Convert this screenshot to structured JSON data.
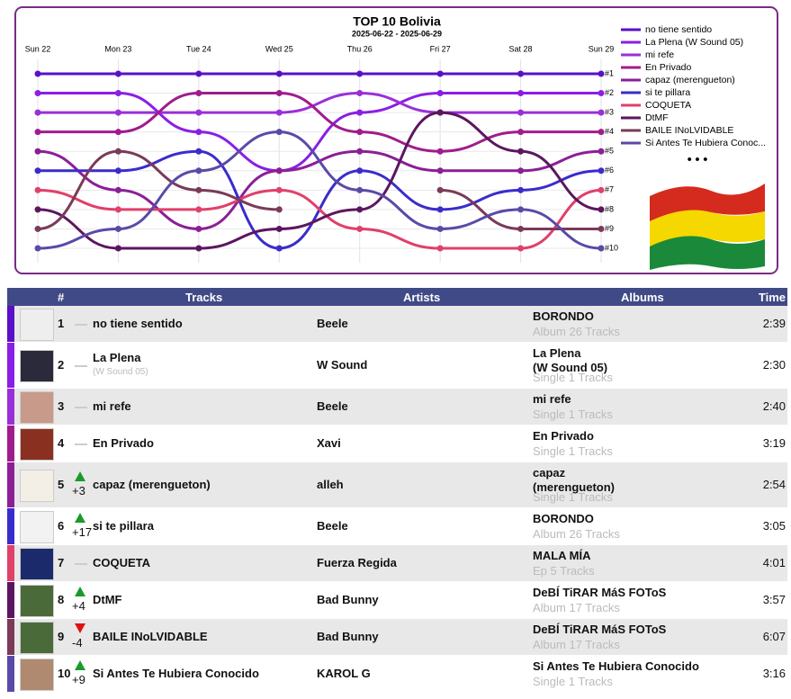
{
  "chart_data": {
    "type": "bump",
    "title": "TOP 10 Bolivia",
    "subtitle": "2025-06-22 - 2025-06-29",
    "categories": [
      "Sun 22",
      "Mon 23",
      "Tue 24",
      "Wed 25",
      "Thu 26",
      "Fri 27",
      "Sat 28",
      "Sun 29"
    ],
    "ylim": [
      10,
      1
    ],
    "yticks": [
      {
        "value": 1,
        "label": "#1"
      },
      {
        "value": 2,
        "label": "#2"
      },
      {
        "value": 3,
        "label": "#3"
      },
      {
        "value": 4,
        "label": "#4"
      },
      {
        "value": 5,
        "label": "#5"
      },
      {
        "value": 6,
        "label": "#6"
      },
      {
        "value": 7,
        "label": "#7"
      },
      {
        "value": 8,
        "label": "#8"
      },
      {
        "value": 9,
        "label": "#9"
      },
      {
        "value": 10,
        "label": "#10"
      }
    ],
    "grid": true,
    "legend": "right",
    "series": [
      {
        "name": "no tiene sentido",
        "color": "#5a10c8",
        "values": [
          1,
          1,
          1,
          1,
          1,
          1,
          1,
          1
        ]
      },
      {
        "name": "La Plena (W Sound 05)",
        "color": "#8a1ee6",
        "values": [
          2,
          2,
          4,
          6,
          3,
          2,
          2,
          2
        ]
      },
      {
        "name": "mi refe",
        "color": "#9a2fd8",
        "values": [
          3,
          3,
          3,
          3,
          2,
          3,
          3,
          3
        ]
      },
      {
        "name": "En Privado",
        "color": "#a01c8c",
        "values": [
          4,
          4,
          2,
          2,
          4,
          5,
          4,
          4
        ]
      },
      {
        "name": "capaz (merengueton)",
        "color": "#8c1e96",
        "values": [
          5,
          7,
          9,
          6,
          5,
          6,
          6,
          5
        ]
      },
      {
        "name": "si te pillara",
        "color": "#3a2ccc",
        "values": [
          6,
          6,
          5,
          10,
          6,
          8,
          7,
          6
        ]
      },
      {
        "name": "COQUETA",
        "color": "#e0406a",
        "values": [
          7,
          8,
          8,
          7,
          9,
          10,
          10,
          7
        ]
      },
      {
        "name": "DtMF",
        "color": "#5c1660",
        "values": [
          8,
          10,
          10,
          9,
          8,
          3,
          5,
          8
        ]
      },
      {
        "name": "BAILE INoLVIDABLE",
        "color": "#7a3a58",
        "values": [
          9,
          5,
          7,
          8,
          null,
          7,
          9,
          9
        ]
      },
      {
        "name": "Si Antes Te Hubiera Conoc...",
        "color": "#5a4aa8",
        "values": [
          10,
          9,
          6,
          4,
          7,
          9,
          8,
          10
        ]
      }
    ]
  },
  "table": {
    "headers": [
      "#",
      "Tracks",
      "Artists",
      "Albums",
      "Time"
    ],
    "rows": [
      {
        "rank": "1",
        "trend": "same",
        "change": null,
        "track": "no tiene sentido",
        "track_sub": null,
        "artist": "Beele",
        "album": "BORONDO",
        "album_sub": "Album 26 Tracks",
        "time": "2:39"
      },
      {
        "rank": "2",
        "trend": "same",
        "change": null,
        "track": "La Plena",
        "track_sub": "(W Sound 05)",
        "artist": "W Sound",
        "album": "La Plena\n(W Sound 05)",
        "album_sub": "Single 1 Tracks",
        "time": "2:30"
      },
      {
        "rank": "3",
        "trend": "same",
        "change": null,
        "track": "mi refe",
        "track_sub": null,
        "artist": "Beele",
        "album": "mi refe",
        "album_sub": "Single 1 Tracks",
        "time": "2:40"
      },
      {
        "rank": "4",
        "trend": "same",
        "change": null,
        "track": "En Privado",
        "track_sub": null,
        "artist": "Xavi",
        "album": "En Privado",
        "album_sub": "Single 1 Tracks",
        "time": "3:19"
      },
      {
        "rank": "5",
        "trend": "up",
        "change": "+3",
        "track": "capaz (merengueton)",
        "track_sub": null,
        "artist": "alleh",
        "album": "capaz\n(merengueton)",
        "album_sub": "Single 1 Tracks",
        "time": "2:54"
      },
      {
        "rank": "6",
        "trend": "up",
        "change": "+17",
        "track": "si te pillara",
        "track_sub": null,
        "artist": "Beele",
        "album": "BORONDO",
        "album_sub": "Album 26 Tracks",
        "time": "3:05"
      },
      {
        "rank": "7",
        "trend": "same",
        "change": null,
        "track": "COQUETA",
        "track_sub": null,
        "artist": "Fuerza Regida",
        "album": "MALA MÍA",
        "album_sub": "Ep 5 Tracks",
        "time": "4:01"
      },
      {
        "rank": "8",
        "trend": "up",
        "change": "+4",
        "track": "DtMF",
        "track_sub": null,
        "artist": "Bad Bunny",
        "album": "DeBÍ TiRAR MáS FOToS",
        "album_sub": "Album 17 Tracks",
        "time": "3:57"
      },
      {
        "rank": "9",
        "trend": "down",
        "change": "-4",
        "track": "BAILE INoLVIDABLE",
        "track_sub": null,
        "artist": "Bad Bunny",
        "album": "DeBÍ TiRAR MáS FOToS",
        "album_sub": "Album 17 Tracks",
        "time": "6:07"
      },
      {
        "rank": "10",
        "trend": "up",
        "change": "+9",
        "track": "Si Antes Te Hubiera Conocido",
        "track_sub": null,
        "artist": "KAROL G",
        "album": "Si Antes Te Hubiera Conocido",
        "album_sub": "Single 1 Tracks",
        "time": "3:16"
      }
    ]
  }
}
